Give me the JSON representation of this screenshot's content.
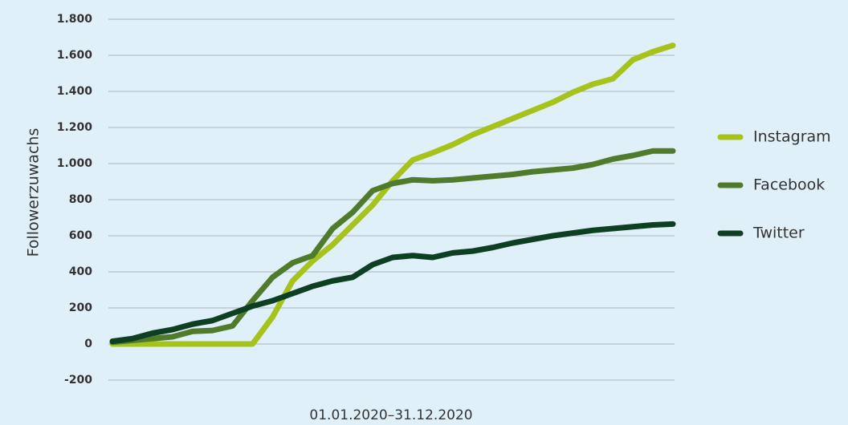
{
  "chart_data": {
    "type": "line",
    "y_label": "Followerzuwachs",
    "x_label": "01.01.2020–31.12.2020",
    "categories": [
      null,
      null,
      null,
      null,
      null,
      null,
      null,
      null,
      null,
      null,
      null,
      null,
      null,
      null,
      null,
      null,
      null,
      null,
      null,
      null,
      null,
      null,
      null,
      null,
      null,
      null,
      null,
      null,
      null
    ],
    "series": [
      {
        "name": "Instagram",
        "color": "#a5c31b",
        "values": [
          0,
          0,
          0,
          0,
          0,
          0,
          0,
          0,
          150,
          350,
          460,
          550,
          660,
          770,
          905,
          1020,
          1060,
          1105,
          1160,
          1205,
          1250,
          1295,
          1340,
          1395,
          1440,
          1470,
          1575,
          1620,
          1655
        ]
      },
      {
        "name": "Facebook",
        "color": "#4f7b2b",
        "values": [
          10,
          20,
          30,
          40,
          70,
          75,
          100,
          240,
          370,
          450,
          490,
          640,
          730,
          850,
          890,
          910,
          905,
          910,
          920,
          930,
          940,
          955,
          965,
          975,
          995,
          1025,
          1045,
          1070,
          1070
        ]
      },
      {
        "name": "Twitter",
        "color": "#0e3f23",
        "values": [
          15,
          30,
          60,
          80,
          110,
          130,
          170,
          210,
          240,
          280,
          320,
          350,
          370,
          440,
          480,
          490,
          480,
          505,
          515,
          535,
          560,
          580,
          600,
          615,
          630,
          640,
          650,
          660,
          665
        ]
      }
    ],
    "ylim": [
      -200,
      1800
    ],
    "yticks": [
      -200,
      0,
      200,
      400,
      600,
      800,
      {
        "value": 1000,
        "label": "1.000"
      },
      {
        "value": 1200,
        "label": "1.200"
      },
      {
        "value": 1400,
        "label": "1.400"
      },
      {
        "value": 1600,
        "label": "1.600"
      },
      {
        "value": 1800,
        "label": "1.800"
      }
    ],
    "grid": true,
    "legend": "right"
  }
}
